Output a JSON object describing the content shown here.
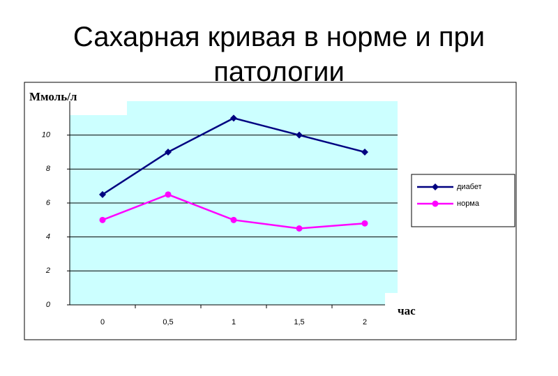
{
  "chart_data": {
    "type": "line",
    "title": "Сахарная кривая в норме и при патологии",
    "y_label": "Ммоль/л",
    "x_label": "час",
    "categories": [
      "0",
      "0,5",
      "1",
      "1,5",
      "2"
    ],
    "series": [
      {
        "name": "диабет",
        "color": "#000080",
        "marker": "diamond",
        "values": [
          6.5,
          9,
          11,
          10,
          9
        ]
      },
      {
        "name": "норма",
        "color": "#ff00ff",
        "marker": "circle",
        "values": [
          5,
          6.5,
          5,
          4.5,
          4.8
        ]
      }
    ],
    "ylim": [
      0,
      12
    ],
    "yticks": [
      0,
      2,
      4,
      6,
      8,
      10
    ],
    "grid": true,
    "legend": "right",
    "plot_background": "#ccffff"
  }
}
